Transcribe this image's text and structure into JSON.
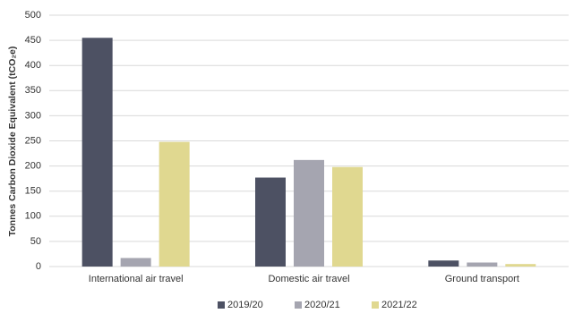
{
  "chart_data": {
    "type": "bar",
    "y_label": "Tonnes Carbon Dioxide Equivalent (tCO₂e)",
    "categories": [
      "International air travel",
      "Domestic air travel",
      "Ground transport"
    ],
    "series": [
      {
        "name": "2019/20",
        "color": "#4d5163",
        "values": [
          455,
          177,
          12
        ]
      },
      {
        "name": "2020/21",
        "color": "#a5a5b0",
        "values": [
          17,
          212,
          8
        ]
      },
      {
        "name": "2021/22",
        "color": "#e0d890",
        "values": [
          248,
          198,
          5
        ]
      }
    ],
    "ylim": [
      0,
      500
    ],
    "yticks": [
      0,
      50,
      100,
      150,
      200,
      250,
      300,
      350,
      400,
      450,
      500
    ],
    "grid": true,
    "legend": "bottom"
  }
}
